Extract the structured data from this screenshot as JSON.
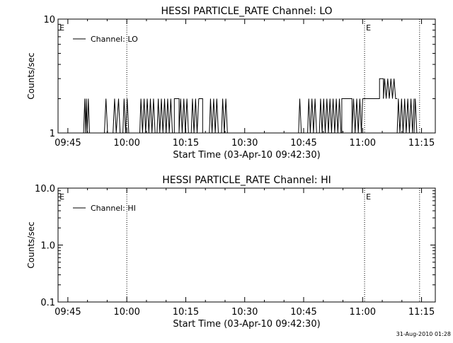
{
  "footer": {
    "date": "31-Aug-2010 01:28"
  },
  "chart_data": [
    {
      "type": "line",
      "title": "HESSI PARTICLE_RATE Channel: LO",
      "xlabel": "Start Time (03-Apr-10 09:42:30)",
      "ylabel": "Counts/sec",
      "x_unit": "minutes since 09:42:30",
      "xlim": [
        0,
        96
      ],
      "ylim": [
        1,
        10
      ],
      "yscale": "log",
      "xticks": [
        2.5,
        17.5,
        32.5,
        47.5,
        62.5,
        77.5,
        92.5
      ],
      "xtick_labels": [
        "09:45",
        "10:00",
        "10:15",
        "10:30",
        "10:45",
        "11:00",
        "11:15"
      ],
      "yticks": [
        1,
        10
      ],
      "ytick_labels": [
        "1",
        "10"
      ],
      "vlines": [
        17.5,
        78.0,
        92.0
      ],
      "markers": [
        {
          "x": 0.2,
          "label": "E"
        },
        {
          "x": 78.2,
          "label": "E"
        }
      ],
      "legend": {
        "label": "Channel: LO",
        "placement": "top-left"
      },
      "series": [
        {
          "name": "Channel: LO",
          "segments": [
            {
              "x": [
                2.5,
                6.5
              ],
              "y": [
                1,
                1
              ]
            },
            {
              "x": [
                6.5,
                6.8,
                7.0,
                7.2,
                7.4,
                7.7,
                8.0
              ],
              "y": [
                1,
                2,
                1,
                2,
                1,
                2,
                1
              ]
            },
            {
              "x": [
                8.0,
                11.8
              ],
              "y": [
                1,
                1
              ]
            },
            {
              "x": [
                11.8,
                12.2,
                12.6
              ],
              "y": [
                1,
                2,
                1
              ]
            },
            {
              "x": [
                12.6,
                14.0
              ],
              "y": [
                1,
                1
              ]
            },
            {
              "x": [
                14.0,
                14.4,
                14.8,
                15.4,
                15.8
              ],
              "y": [
                1,
                2,
                1,
                2,
                1
              ]
            },
            {
              "x": [
                15.8,
                16.5
              ],
              "y": [
                1,
                1
              ]
            },
            {
              "x": [
                16.5,
                16.8,
                17.2,
                17.6,
                18.0
              ],
              "y": [
                1,
                2,
                1,
                2,
                1
              ]
            },
            {
              "x": [
                18.0,
                20.8
              ],
              "y": [
                1,
                1
              ]
            },
            {
              "x": [
                20.8,
                21.1,
                21.5,
                21.9,
                22.3,
                22.7,
                23.1,
                23.5,
                23.9,
                24.3,
                24.7
              ],
              "y": [
                1,
                2,
                1,
                2,
                1,
                2,
                1,
                2,
                1,
                2,
                1
              ]
            },
            {
              "x": [
                24.7,
                25.2
              ],
              "y": [
                1,
                1
              ]
            },
            {
              "x": [
                25.2,
                25.5,
                25.9,
                26.3,
                26.7,
                27.1,
                27.5,
                27.9,
                28.3,
                28.7,
                29.1
              ],
              "y": [
                1,
                2,
                1,
                2,
                1,
                2,
                1,
                2,
                1,
                2,
                1
              ]
            },
            {
              "x": [
                29.1,
                29.6,
                29.6,
                30.8,
                30.8
              ],
              "y": [
                1,
                1,
                2,
                2,
                1
              ]
            },
            {
              "x": [
                30.8,
                31.2,
                31.6,
                32.0,
                32.4,
                32.8,
                33.2
              ],
              "y": [
                1,
                2,
                1,
                2,
                1,
                2,
                1
              ]
            },
            {
              "x": [
                33.2,
                33.9
              ],
              "y": [
                1,
                1
              ]
            },
            {
              "x": [
                33.9,
                34.2,
                34.6,
                35.0,
                35.4,
                35.8
              ],
              "y": [
                1,
                2,
                1,
                2,
                1,
                2
              ]
            },
            {
              "x": [
                35.8,
                36.8,
                36.8
              ],
              "y": [
                2,
                2,
                1
              ]
            },
            {
              "x": [
                36.8,
                38.5
              ],
              "y": [
                1,
                1
              ]
            },
            {
              "x": [
                38.5,
                38.8,
                39.2,
                39.6,
                40.0,
                40.4,
                40.8
              ],
              "y": [
                1,
                2,
                1,
                2,
                1,
                2,
                1
              ]
            },
            {
              "x": [
                40.8,
                41.6
              ],
              "y": [
                1,
                1
              ]
            },
            {
              "x": [
                41.6,
                41.9,
                42.3,
                42.7,
                43.1
              ],
              "y": [
                1,
                2,
                1,
                2,
                1
              ]
            },
            {
              "x": [
                43.1,
                61.2
              ],
              "y": [
                1,
                1
              ]
            },
            {
              "x": [
                61.2,
                61.5,
                61.9
              ],
              "y": [
                1,
                2,
                1
              ]
            },
            {
              "x": [
                61.9,
                63.5
              ],
              "y": [
                1,
                1
              ]
            },
            {
              "x": [
                63.5,
                63.8,
                64.2,
                64.6,
                65.0,
                65.4,
                65.8
              ],
              "y": [
                1,
                2,
                1,
                2,
                1,
                2,
                1
              ]
            },
            {
              "x": [
                65.8,
                66.5
              ],
              "y": [
                1,
                1
              ]
            },
            {
              "x": [
                66.5,
                66.8,
                67.2,
                67.6,
                68.0,
                68.4,
                68.8,
                69.2,
                69.6,
                70.0,
                70.4,
                70.8,
                71.2,
                71.6,
                72.0
              ],
              "y": [
                1,
                2,
                1,
                2,
                1,
                2,
                1,
                2,
                1,
                2,
                1,
                2,
                1,
                2,
                1
              ]
            },
            {
              "x": [
                72.0,
                72.2,
                72.2,
                74.8,
                74.8
              ],
              "y": [
                1,
                1,
                2,
                2,
                1
              ]
            },
            {
              "x": [
                74.8,
                75.2,
                75.6,
                76.0,
                76.4,
                76.8,
                77.2,
                77.5
              ],
              "y": [
                1,
                2,
                1,
                2,
                1,
                2,
                1,
                2
              ]
            },
            {
              "x": [
                77.5,
                81.8,
                81.8,
                82.8,
                82.8
              ],
              "y": [
                2,
                2,
                3,
                3,
                2
              ]
            },
            {
              "x": [
                82.8,
                83.1,
                83.5,
                83.9,
                84.3,
                84.7,
                85.1,
                85.5,
                85.9,
                86.3
              ],
              "y": [
                2,
                3,
                2,
                3,
                2,
                3,
                2,
                3,
                2,
                2
              ]
            },
            {
              "x": [
                86.3,
                86.6,
                87.0,
                87.4,
                87.8,
                88.2,
                88.6,
                89.0,
                89.4,
                89.8,
                90.2,
                90.6
              ],
              "y": [
                1,
                2,
                1,
                2,
                1,
                2,
                1,
                2,
                1,
                2,
                1,
                2
              ]
            },
            {
              "x": [
                90.6,
                90.9,
                91.3
              ],
              "y": [
                1,
                2,
                1
              ]
            }
          ]
        }
      ]
    },
    {
      "type": "line",
      "title": "HESSI PARTICLE_RATE Channel: HI",
      "xlabel": "Start Time (03-Apr-10 09:42:30)",
      "ylabel": "Counts/sec",
      "x_unit": "minutes since 09:42:30",
      "xlim": [
        0,
        96
      ],
      "ylim": [
        0.1,
        10
      ],
      "yscale": "log",
      "xticks": [
        2.5,
        17.5,
        32.5,
        47.5,
        62.5,
        77.5,
        92.5
      ],
      "xtick_labels": [
        "09:45",
        "10:00",
        "10:15",
        "10:30",
        "10:45",
        "11:00",
        "11:15"
      ],
      "yticks": [
        0.1,
        1,
        10
      ],
      "ytick_labels": [
        "0.1",
        "1.0",
        "10.0"
      ],
      "vlines": [
        17.5,
        78.0,
        92.0
      ],
      "markers": [
        {
          "x": 0.2,
          "label": "E"
        },
        {
          "x": 78.2,
          "label": "E"
        }
      ],
      "legend": {
        "label": "Channel: HI",
        "placement": "top-left"
      },
      "series": [
        {
          "name": "Channel: HI",
          "segments": []
        }
      ]
    }
  ]
}
